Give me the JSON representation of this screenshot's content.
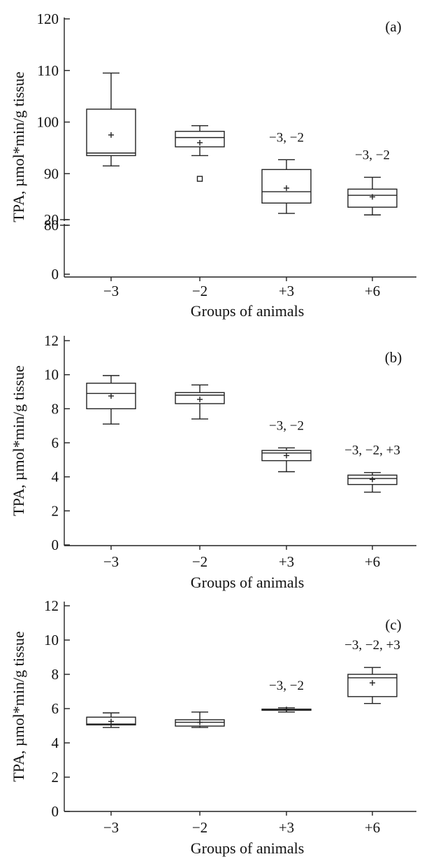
{
  "chart_data": [
    {
      "type": "box",
      "panel": "(a)",
      "xlabel": "Groups of animals",
      "ylabel": "TPA, µmol*min/g tissue",
      "categories": [
        "−3",
        "−2",
        "+3",
        "+6"
      ],
      "axis_break": true,
      "yticks_lower": [
        "0",
        "20"
      ],
      "yticks_upper": [
        "80",
        "90",
        "100",
        "110",
        "120"
      ],
      "ylim_upper": [
        80,
        120
      ],
      "boxes": [
        {
          "min": 91.5,
          "q1": 93.5,
          "median": 94.0,
          "q3": 102.5,
          "max": 109.5,
          "mean": 97.5
        },
        {
          "min": 93.5,
          "q1": 95.2,
          "median": 97.0,
          "q3": 98.2,
          "max": 99.3,
          "mean": 96.0,
          "outliers": [
            89.0
          ]
        },
        {
          "min": 82.3,
          "q1": 84.3,
          "median": 86.5,
          "q3": 90.8,
          "max": 92.7,
          "mean": 87.2
        },
        {
          "min": 82.0,
          "q1": 83.5,
          "median": 85.8,
          "q3": 87.0,
          "max": 89.3,
          "mean": 85.5
        }
      ],
      "annotations": [
        "",
        "",
        "−3, −2",
        "−3, −2"
      ]
    },
    {
      "type": "box",
      "panel": "(b)",
      "xlabel": "Groups of animals",
      "ylabel": "TPA, µmol*min/g tissue",
      "categories": [
        "−3",
        "−2",
        "+3",
        "+6"
      ],
      "yticks": [
        "0",
        "2",
        "4",
        "6",
        "8",
        "10",
        "12"
      ],
      "ylim": [
        0,
        12
      ],
      "boxes": [
        {
          "min": 7.1,
          "q1": 8.0,
          "median": 8.9,
          "q3": 9.5,
          "max": 9.95,
          "mean": 8.75
        },
        {
          "min": 7.4,
          "q1": 8.3,
          "median": 8.8,
          "q3": 8.95,
          "max": 9.4,
          "mean": 8.55
        },
        {
          "min": 4.3,
          "q1": 4.95,
          "median": 5.4,
          "q3": 5.55,
          "max": 5.7,
          "mean": 5.25
        },
        {
          "min": 3.1,
          "q1": 3.55,
          "median": 3.9,
          "q3": 4.1,
          "max": 4.25,
          "mean": 3.85
        }
      ],
      "annotations": [
        "",
        "",
        "−3, −2",
        "−3, −2, +3"
      ]
    },
    {
      "type": "box",
      "panel": "(c)",
      "xlabel": "Groups of animals",
      "ylabel": "TPA, µmol*min/g tissue",
      "categories": [
        "−3",
        "−2",
        "+3",
        "+6"
      ],
      "yticks": [
        "0",
        "2",
        "4",
        "6",
        "8",
        "10",
        "12"
      ],
      "ylim": [
        0,
        12
      ],
      "boxes": [
        {
          "min": 4.9,
          "q1": 5.05,
          "median": 5.1,
          "q3": 5.5,
          "max": 5.75,
          "mean": 5.25
        },
        {
          "min": 4.9,
          "q1": 4.98,
          "median": 5.2,
          "q3": 5.35,
          "max": 5.8,
          "mean": 5.2
        },
        {
          "min": 5.8,
          "q1": 5.9,
          "median": 5.95,
          "q3": 5.97,
          "max": 6.05,
          "mean": 5.95
        },
        {
          "min": 6.3,
          "q1": 6.7,
          "median": 7.8,
          "q3": 8.0,
          "max": 8.4,
          "mean": 7.5
        }
      ],
      "annotations": [
        "",
        "",
        "−3, −2",
        "−3, −2, +3"
      ]
    }
  ]
}
